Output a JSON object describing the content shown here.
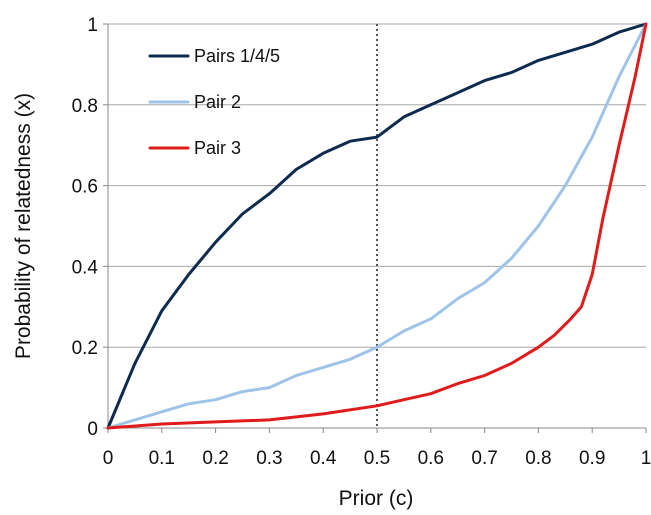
{
  "chart_data": {
    "type": "line",
    "title": "",
    "xlabel": "Prior (c)",
    "ylabel": "Probability of relatedness (x)",
    "xlim": [
      0,
      1
    ],
    "ylim": [
      0,
      1
    ],
    "xticks": [
      "0",
      "0.1",
      "0.2",
      "0.3",
      "0.4",
      "0.5",
      "0.6",
      "0.7",
      "0.8",
      "0.9",
      "1"
    ],
    "yticks": [
      "0",
      "0.2",
      "0.4",
      "0.6",
      "0.8",
      "1"
    ],
    "grid": "horizontal",
    "legend_position": "top-left",
    "reference_line": {
      "x": 0.5,
      "style": "dotted"
    },
    "series": [
      {
        "name": "Pairs 1/4/5",
        "color": "#0d2a4f",
        "x": [
          0,
          0.05,
          0.1,
          0.15,
          0.2,
          0.25,
          0.3,
          0.35,
          0.4,
          0.45,
          0.5,
          0.55,
          0.6,
          0.65,
          0.7,
          0.75,
          0.8,
          0.85,
          0.9,
          0.95,
          1
        ],
        "y": [
          0,
          0.16,
          0.29,
          0.38,
          0.46,
          0.53,
          0.58,
          0.64,
          0.68,
          0.71,
          0.72,
          0.77,
          0.8,
          0.83,
          0.86,
          0.88,
          0.91,
          0.93,
          0.95,
          0.98,
          1
        ]
      },
      {
        "name": "Pair 2",
        "color": "#9fc4e8",
        "x": [
          0,
          0.05,
          0.1,
          0.15,
          0.2,
          0.25,
          0.3,
          0.35,
          0.4,
          0.45,
          0.5,
          0.55,
          0.6,
          0.65,
          0.7,
          0.75,
          0.8,
          0.85,
          0.9,
          0.95,
          1
        ],
        "y": [
          0,
          0.02,
          0.04,
          0.06,
          0.07,
          0.09,
          0.1,
          0.13,
          0.15,
          0.17,
          0.2,
          0.24,
          0.27,
          0.32,
          0.36,
          0.42,
          0.5,
          0.6,
          0.72,
          0.87,
          1
        ]
      },
      {
        "name": "Pair 3",
        "color": "#e01b1b",
        "x": [
          0,
          0.1,
          0.2,
          0.3,
          0.4,
          0.5,
          0.55,
          0.6,
          0.65,
          0.7,
          0.75,
          0.8,
          0.83,
          0.86,
          0.88,
          0.9,
          0.92,
          0.95,
          0.98,
          1
        ],
        "y": [
          0,
          0.01,
          0.015,
          0.02,
          0.035,
          0.055,
          0.07,
          0.085,
          0.11,
          0.13,
          0.16,
          0.2,
          0.23,
          0.27,
          0.3,
          0.38,
          0.52,
          0.7,
          0.87,
          1
        ]
      }
    ]
  }
}
